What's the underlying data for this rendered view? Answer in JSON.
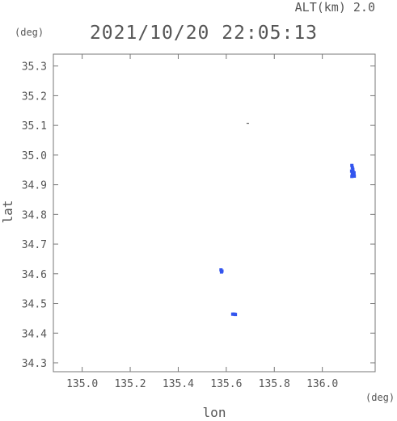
{
  "header": {
    "altitude_label": "ALT(km) 2.0",
    "timestamp": "2021/10/20 22:05:13",
    "y_unit": "(deg)",
    "x_unit": "(deg)"
  },
  "chart_data": {
    "type": "scatter",
    "xlabel": "lon",
    "ylabel": "lat",
    "xlim": [
      134.88,
      136.22
    ],
    "ylim": [
      34.27,
      35.34
    ],
    "x_ticks": [
      "135.0",
      "135.2",
      "135.4",
      "135.6",
      "135.8",
      "136.0"
    ],
    "x_tick_values": [
      135.0,
      135.2,
      135.4,
      135.6,
      135.8,
      136.0
    ],
    "y_ticks": [
      "34.3",
      "34.4",
      "34.5",
      "34.6",
      "34.7",
      "34.8",
      "34.9",
      "35.0",
      "35.1",
      "35.2",
      "35.3"
    ],
    "y_tick_values": [
      34.3,
      34.4,
      34.5,
      34.6,
      34.7,
      34.8,
      34.9,
      35.0,
      35.1,
      35.2,
      35.3
    ],
    "grid": false,
    "point_color": "#3355ee",
    "points": [
      {
        "x": 136.123,
        "y": 34.965
      },
      {
        "x": 136.125,
        "y": 34.958
      },
      {
        "x": 136.127,
        "y": 34.952
      },
      {
        "x": 136.122,
        "y": 34.946
      },
      {
        "x": 136.128,
        "y": 34.944
      },
      {
        "x": 136.125,
        "y": 34.938
      },
      {
        "x": 136.13,
        "y": 34.935
      },
      {
        "x": 136.127,
        "y": 34.931
      },
      {
        "x": 136.132,
        "y": 34.94
      },
      {
        "x": 136.123,
        "y": 34.928
      },
      {
        "x": 136.133,
        "y": 34.929
      },
      {
        "x": 135.578,
        "y": 34.613
      },
      {
        "x": 135.58,
        "y": 34.606
      },
      {
        "x": 135.582,
        "y": 34.609
      },
      {
        "x": 135.627,
        "y": 34.464
      },
      {
        "x": 135.633,
        "y": 34.464
      },
      {
        "x": 135.638,
        "y": 34.463
      }
    ],
    "dark_points": [
      {
        "x": 135.687,
        "y": 35.107
      },
      {
        "x": 135.692,
        "y": 35.107
      }
    ]
  }
}
